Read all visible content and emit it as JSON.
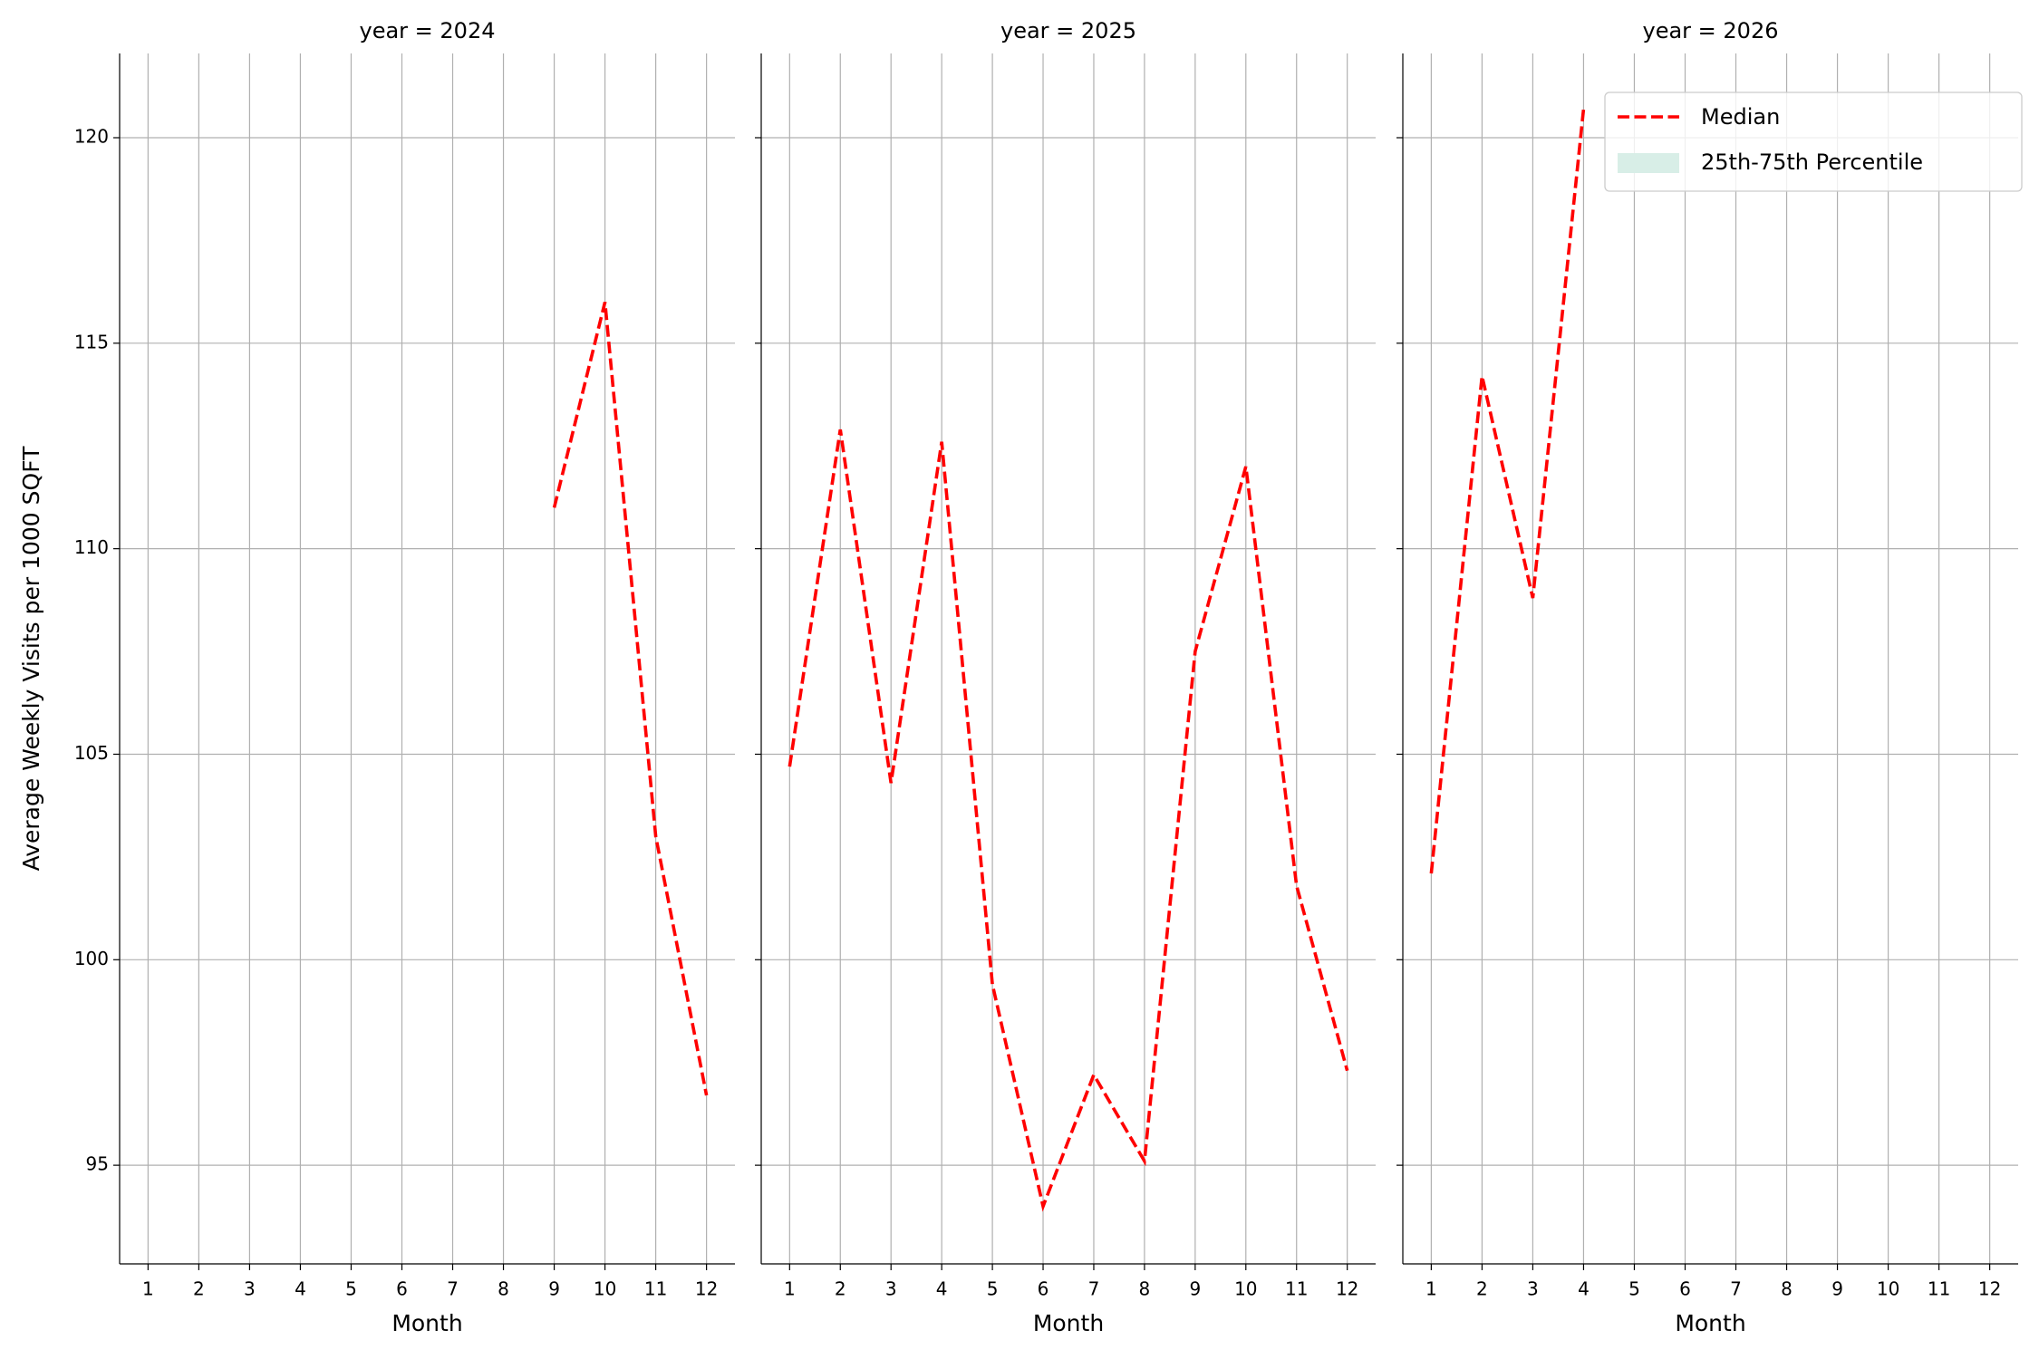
{
  "chart_data": [
    {
      "type": "line",
      "title": "year = 2024",
      "xlabel": "Month",
      "ylabel": "Average Weekly Visits per 1000 SQFT",
      "x": [
        1,
        2,
        3,
        4,
        5,
        6,
        7,
        8,
        9,
        10,
        11,
        12
      ],
      "series": [
        {
          "name": "Median",
          "color": "#ff0000",
          "style": "dashed",
          "values": [
            null,
            null,
            null,
            null,
            null,
            null,
            null,
            null,
            111.0,
            116.0,
            103.0,
            96.7
          ]
        }
      ],
      "xlim": [
        0.44,
        12.56
      ],
      "xticks": [
        1,
        2,
        3,
        4,
        5,
        6,
        7,
        8,
        9,
        10,
        11,
        12
      ],
      "ylim": [
        92.6,
        122.05
      ],
      "yticks": [
        95,
        100,
        105,
        110,
        115,
        120
      ],
      "grid": true
    },
    {
      "type": "line",
      "title": "year = 2025",
      "xlabel": "Month",
      "x": [
        1,
        2,
        3,
        4,
        5,
        6,
        7,
        8,
        9,
        10,
        11,
        12
      ],
      "series": [
        {
          "name": "Median",
          "color": "#ff0000",
          "style": "dashed",
          "values": [
            104.7,
            112.9,
            104.3,
            112.6,
            99.4,
            94.0,
            97.2,
            95.1,
            107.5,
            112.0,
            101.8,
            97.3
          ]
        }
      ],
      "xlim": [
        0.44,
        12.56
      ],
      "xticks": [
        1,
        2,
        3,
        4,
        5,
        6,
        7,
        8,
        9,
        10,
        11,
        12
      ],
      "grid": true
    },
    {
      "type": "line",
      "title": "year = 2026",
      "xlabel": "Month",
      "x": [
        1,
        2,
        3,
        4,
        5,
        6,
        7,
        8,
        9,
        10,
        11,
        12
      ],
      "series": [
        {
          "name": "Median",
          "color": "#ff0000",
          "style": "dashed",
          "values": [
            102.1,
            114.2,
            108.8,
            120.7,
            null,
            null,
            null,
            null,
            null,
            null,
            null,
            null
          ]
        },
        {
          "name": "25th-75th Percentile",
          "color": "#d8eee7",
          "style": "band",
          "values": [
            null,
            null,
            null,
            null,
            null,
            null,
            null,
            null,
            null,
            null,
            null,
            null
          ]
        }
      ],
      "xlim": [
        0.44,
        12.56
      ],
      "xticks": [
        1,
        2,
        3,
        4,
        5,
        6,
        7,
        8,
        9,
        10,
        11,
        12
      ],
      "grid": true,
      "legend": "upper right"
    }
  ]
}
